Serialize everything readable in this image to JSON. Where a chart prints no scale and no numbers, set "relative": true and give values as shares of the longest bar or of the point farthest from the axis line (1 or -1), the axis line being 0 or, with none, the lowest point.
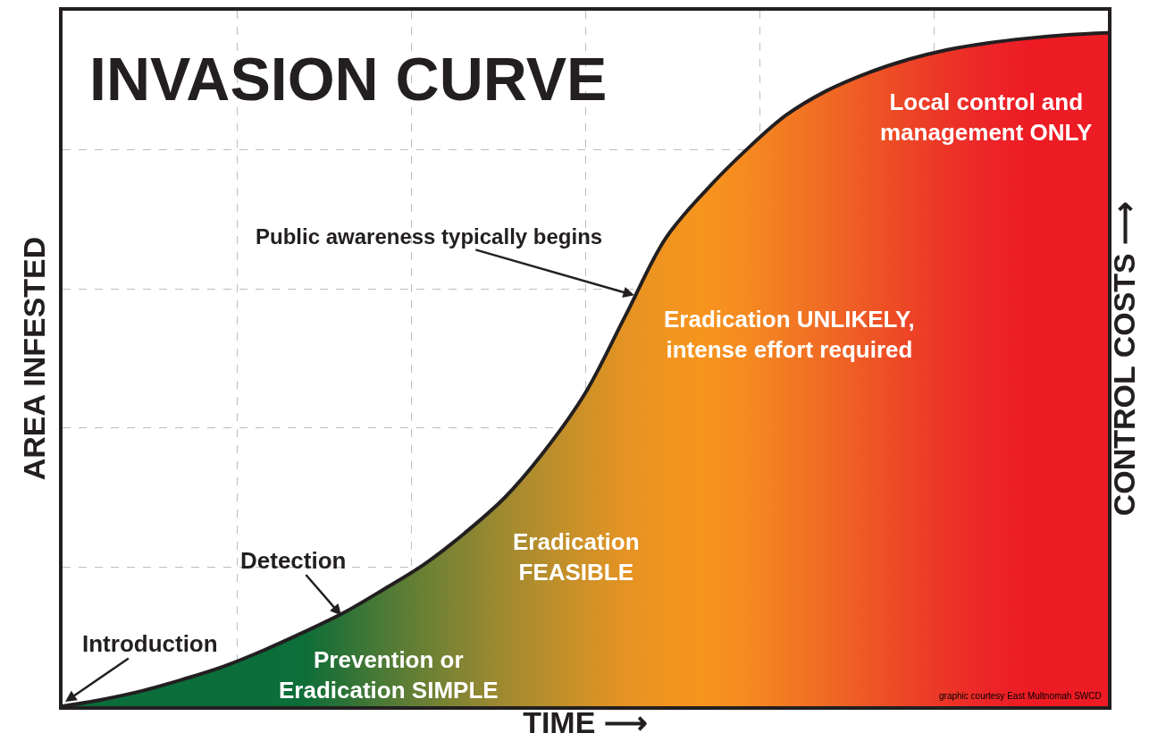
{
  "chart_data": {
    "type": "area",
    "title": "INVASION CURVE",
    "xlabel": "TIME ⟶",
    "ylabel": "AREA INFESTED",
    "y2label": "CONTROL COSTS ⟶",
    "relative": true,
    "grid": true,
    "categories": [
      null,
      null,
      null,
      null,
      null,
      null,
      null,
      null,
      null,
      null,
      null,
      null,
      null,
      null,
      null,
      null,
      null,
      null,
      null,
      null,
      null,
      null,
      null,
      null,
      null,
      null,
      null
    ],
    "series": [
      {
        "color": "#231f20",
        "values": [
          0,
          0.01,
          0.023,
          0.04,
          0.059,
          0.083,
          0.11,
          0.139,
          0.174,
          0.211,
          0.257,
          0.31,
          0.38,
          0.465,
          0.58,
          0.695,
          0.766,
          0.826,
          0.878,
          0.914,
          0.94,
          0.96,
          0.975,
          0.985,
          0.992,
          0.997,
          1
        ],
        "colors": [
          "#0b6e3a",
          "#0b6e3a",
          "#0b6e3a",
          "#0b6e3a",
          "#0b6e3a",
          "#0b6e3a",
          "#0d6e38",
          "#2c7237",
          "#4d7a36",
          "#6a8034",
          "#868533",
          "#a18a30",
          "#b88e2c",
          "#cf9127",
          "#e49323",
          "#f1941f",
          "#f7941d",
          "#f58a20",
          "#f27a23",
          "#f06a24",
          "#ee5825",
          "#ed4526",
          "#ec3427",
          "#ec2528",
          "#ed1c24",
          "#ed1c24",
          "#ed1c24"
        ]
      }
    ],
    "annotations": [
      "Introduction",
      "Detection",
      "Public awareness typically begins",
      "Prevention or\nEradication SIMPLE",
      "Eradication\nFEASIBLE",
      "Eradication UNLIKELY,\nintense effort required",
      "Local control and\nmanagement ONLY",
      "graphic courtesy East Multnomah SWCD"
    ]
  }
}
